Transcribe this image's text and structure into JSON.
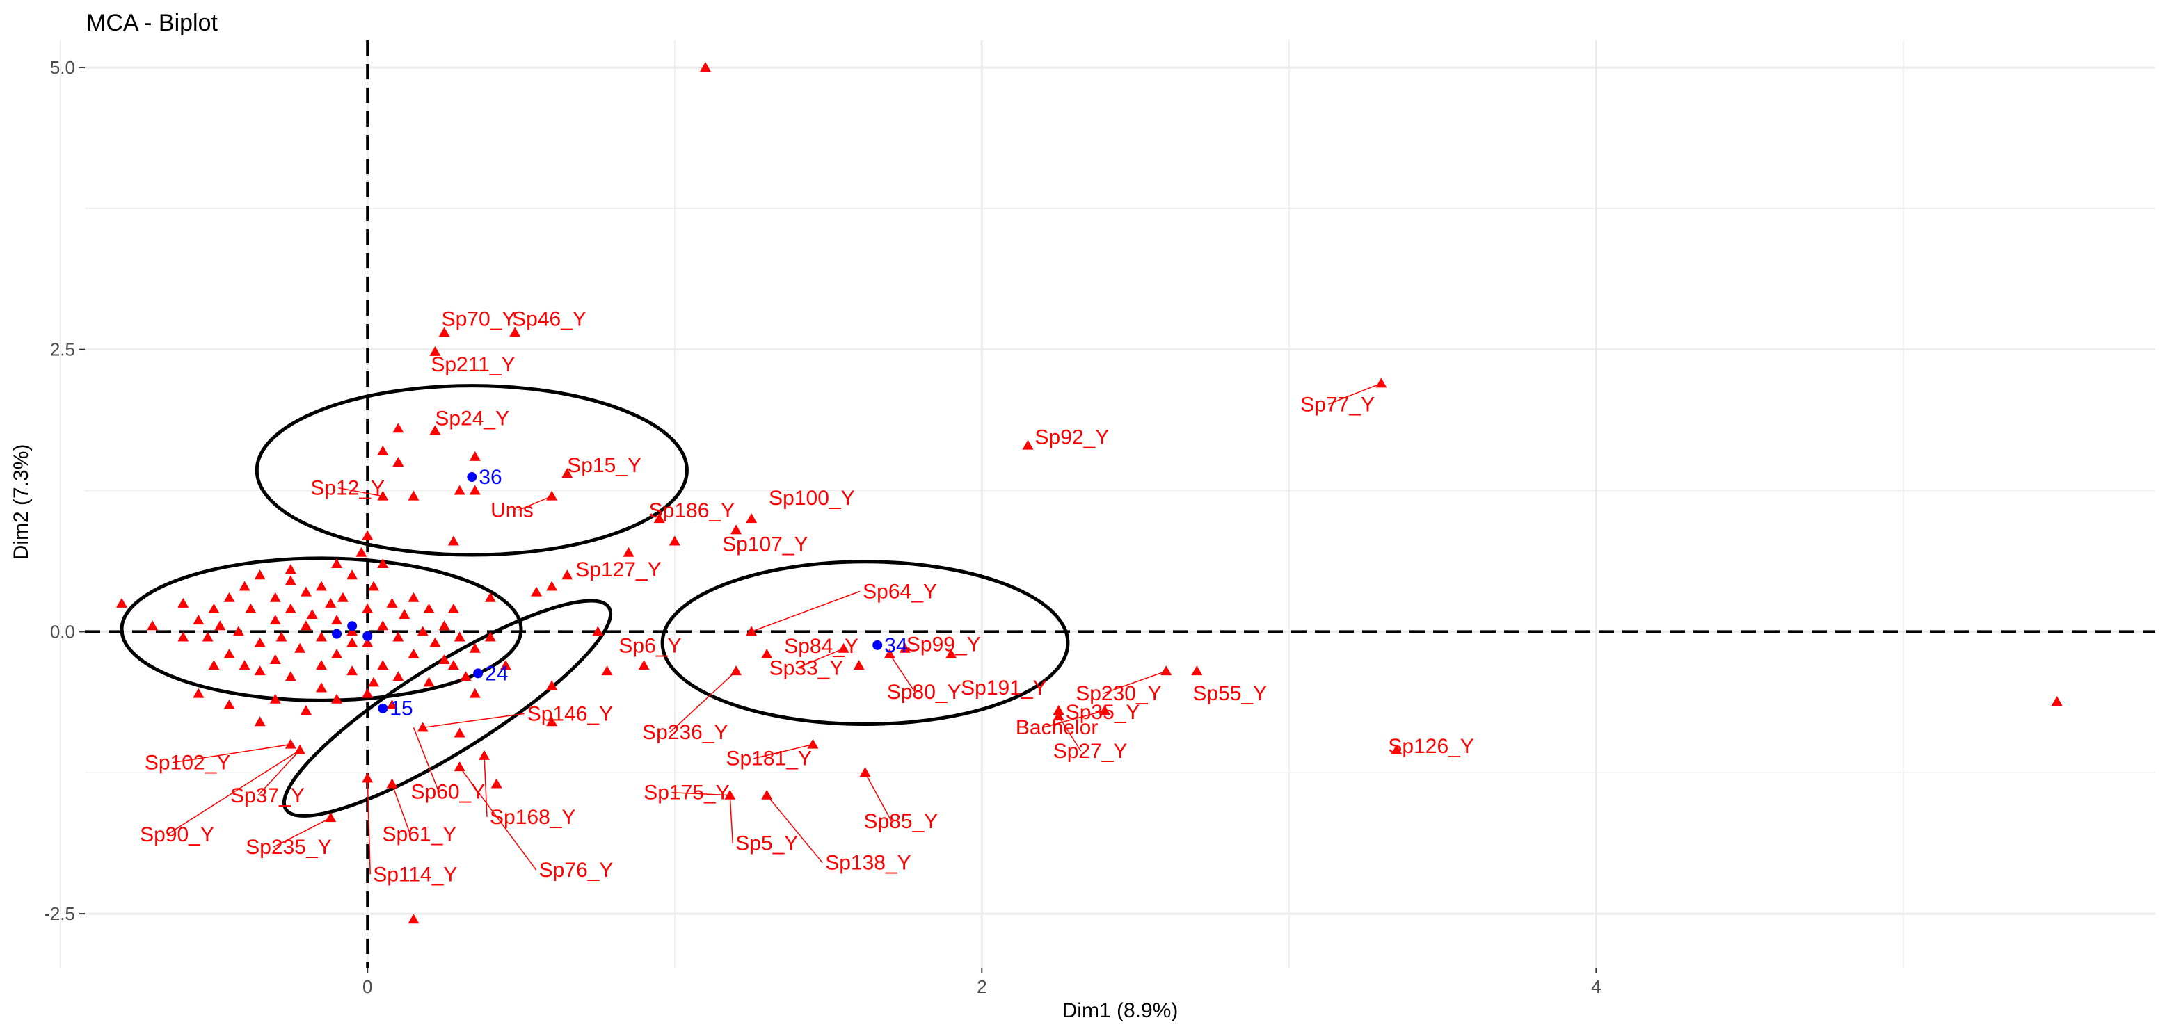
{
  "chart_data": {
    "type": "scatter",
    "title": "MCA - Biplot",
    "xlabel": "Dim1 (8.9%)",
    "ylabel": "Dim2 (7.3%)",
    "xlim": [
      -0.92,
      5.82
    ],
    "ylim": [
      -2.98,
      5.24
    ],
    "x_ticks": [
      0,
      2,
      4
    ],
    "y_ticks": [
      -2.5,
      0.0,
      2.5,
      5.0
    ],
    "x_tick_labels": [
      "0",
      "2",
      "4"
    ],
    "y_tick_labels": [
      "-2.5",
      "0.0",
      "2.5",
      "5.0"
    ],
    "grid": true,
    "reference_lines": {
      "x": 0,
      "y": 0,
      "style": "dashed"
    },
    "colors": {
      "variables": "#ff0000",
      "individuals": "#0000ff",
      "ellipse": "#000000",
      "grid": "#ebebeb"
    },
    "variable_points": [
      [
        1.1,
        5.0
      ],
      [
        3.3,
        2.2
      ],
      [
        5.5,
        -0.62
      ],
      [
        0.25,
        2.65
      ],
      [
        0.48,
        2.65
      ],
      [
        0.22,
        2.48
      ],
      [
        2.15,
        1.65
      ],
      [
        0.35,
        1.55
      ],
      [
        0.65,
        1.4
      ],
      [
        0.6,
        1.2
      ],
      [
        0.1,
        1.8
      ],
      [
        0.22,
        1.78
      ],
      [
        0.05,
        1.6
      ],
      [
        0.35,
        1.25
      ],
      [
        0.3,
        1.25
      ],
      [
        0.1,
        1.5
      ],
      [
        0.15,
        1.2
      ],
      [
        0.05,
        1.2
      ],
      [
        0.28,
        0.8
      ],
      [
        0.85,
        0.7
      ],
      [
        1.0,
        0.8
      ],
      [
        0.95,
        1.0
      ],
      [
        1.25,
        1.0
      ],
      [
        1.2,
        0.9
      ],
      [
        0.65,
        0.5
      ],
      [
        0.6,
        0.4
      ],
      [
        0.55,
        0.35
      ],
      [
        0.4,
        0.3
      ],
      [
        0.75,
        0.0
      ],
      [
        0.78,
        -0.35
      ],
      [
        0.9,
        -0.3
      ],
      [
        1.2,
        -0.35
      ],
      [
        1.3,
        -0.2
      ],
      [
        1.25,
        0.0
      ],
      [
        1.55,
        -0.15
      ],
      [
        1.6,
        -0.3
      ],
      [
        1.7,
        -0.2
      ],
      [
        1.75,
        -0.15
      ],
      [
        1.9,
        -0.2
      ],
      [
        2.4,
        -0.7
      ],
      [
        2.25,
        -0.7
      ],
      [
        2.25,
        -0.75
      ],
      [
        2.6,
        -0.35
      ],
      [
        2.7,
        -0.35
      ],
      [
        3.35,
        -1.05
      ],
      [
        1.45,
        -1.0
      ],
      [
        1.62,
        -1.25
      ],
      [
        1.18,
        -1.45
      ],
      [
        1.3,
        -1.45
      ],
      [
        0.6,
        -0.8
      ],
      [
        0.6,
        -0.48
      ],
      [
        0.35,
        -0.55
      ],
      [
        0.18,
        -0.85
      ],
      [
        0.3,
        -0.9
      ],
      [
        0.38,
        -1.1
      ],
      [
        0.42,
        -1.35
      ],
      [
        0.3,
        -1.2
      ],
      [
        0.15,
        -2.55
      ],
      [
        -0.25,
        -1.0
      ],
      [
        -0.22,
        -1.05
      ],
      [
        -0.12,
        -1.65
      ],
      [
        0.08,
        -1.35
      ],
      [
        0.0,
        -1.3
      ],
      [
        -0.05,
        -0.1
      ],
      [
        -0.6,
        0.25
      ],
      [
        -0.5,
        0.2
      ],
      [
        -0.45,
        0.3
      ],
      [
        -0.55,
        0.1
      ],
      [
        -0.48,
        0.05
      ],
      [
        -0.52,
        -0.05
      ],
      [
        -0.4,
        0.4
      ],
      [
        -0.38,
        0.2
      ],
      [
        -0.42,
        0.0
      ],
      [
        -0.35,
        -0.1
      ],
      [
        -0.3,
        0.3
      ],
      [
        -0.3,
        0.1
      ],
      [
        -0.28,
        -0.05
      ],
      [
        -0.25,
        0.45
      ],
      [
        -0.25,
        0.2
      ],
      [
        -0.22,
        -0.15
      ],
      [
        -0.2,
        0.35
      ],
      [
        -0.2,
        0.05
      ],
      [
        -0.18,
        0.15
      ],
      [
        -0.15,
        0.4
      ],
      [
        -0.15,
        -0.05
      ],
      [
        -0.12,
        0.25
      ],
      [
        -0.1,
        0.1
      ],
      [
        -0.1,
        -0.2
      ],
      [
        -0.08,
        0.3
      ],
      [
        -0.05,
        0.0
      ],
      [
        -0.05,
        0.5
      ],
      [
        0.0,
        0.2
      ],
      [
        0.0,
        -0.1
      ],
      [
        0.02,
        0.4
      ],
      [
        0.05,
        0.05
      ],
      [
        0.08,
        0.25
      ],
      [
        0.1,
        -0.05
      ],
      [
        0.12,
        0.15
      ],
      [
        0.15,
        0.3
      ],
      [
        0.18,
        0.0
      ],
      [
        0.2,
        0.2
      ],
      [
        0.22,
        -0.1
      ],
      [
        0.25,
        0.05
      ],
      [
        0.28,
        0.2
      ],
      [
        0.3,
        -0.05
      ],
      [
        -0.35,
        0.5
      ],
      [
        -0.45,
        -0.2
      ],
      [
        -0.4,
        -0.3
      ],
      [
        -0.35,
        -0.35
      ],
      [
        -0.3,
        -0.25
      ],
      [
        -0.25,
        -0.4
      ],
      [
        -0.15,
        -0.3
      ],
      [
        -0.05,
        -0.35
      ],
      [
        0.05,
        -0.3
      ],
      [
        0.15,
        -0.2
      ],
      [
        0.25,
        -0.25
      ],
      [
        0.35,
        -0.15
      ],
      [
        0.4,
        -0.05
      ],
      [
        0.45,
        -0.3
      ],
      [
        -0.5,
        -0.3
      ],
      [
        -0.6,
        -0.05
      ],
      [
        -0.7,
        0.05
      ],
      [
        -0.8,
        0.25
      ],
      [
        0.0,
        0.85
      ],
      [
        -0.02,
        0.7
      ],
      [
        -0.1,
        0.6
      ],
      [
        0.05,
        0.6
      ],
      [
        -0.55,
        -0.55
      ],
      [
        -0.45,
        -0.65
      ],
      [
        -0.3,
        -0.6
      ],
      [
        -0.2,
        -0.7
      ],
      [
        -0.1,
        -0.6
      ],
      [
        0.0,
        -0.55
      ],
      [
        0.08,
        -0.65
      ],
      [
        -0.35,
        -0.8
      ],
      [
        0.32,
        -0.4
      ],
      [
        0.28,
        -0.3
      ],
      [
        0.2,
        -0.45
      ],
      [
        0.1,
        -0.4
      ],
      [
        0.02,
        -0.45
      ],
      [
        -0.15,
        -0.5
      ],
      [
        -0.25,
        0.55
      ]
    ],
    "variable_labels": [
      {
        "text": "Sp70_Y",
        "x": 0.25,
        "y": 2.65
      },
      {
        "text": "Sp46_Y",
        "x": 0.48,
        "y": 2.65
      },
      {
        "text": "Sp211_Y",
        "x": 0.22,
        "y": 2.48
      },
      {
        "text": "Sp77_Y",
        "x": 3.3,
        "y": 2.2
      },
      {
        "text": "Sp24_Y",
        "x": 0.22,
        "y": 1.78
      },
      {
        "text": "Sp92_Y",
        "x": 2.15,
        "y": 1.65
      },
      {
        "text": "Sp15_Y",
        "x": 0.65,
        "y": 1.4
      },
      {
        "text": "Sp12_Y",
        "x": 0.05,
        "y": 1.2
      },
      {
        "text": "Ums",
        "x": 0.6,
        "y": 1.2
      },
      {
        "text": "Sp186_Y",
        "x": 0.95,
        "y": 1.0
      },
      {
        "text": "Sp100_Y",
        "x": 1.25,
        "y": 1.0
      },
      {
        "text": "Sp107_Y",
        "x": 1.2,
        "y": 0.9
      },
      {
        "text": "Sp127_Y",
        "x": 0.65,
        "y": 0.5
      },
      {
        "text": "Sp64_Y",
        "x": 1.25,
        "y": 0.0
      },
      {
        "text": "Sp84_Y",
        "x": 1.3,
        "y": -0.2
      },
      {
        "text": "Sp99_Y",
        "x": 1.75,
        "y": -0.15
      },
      {
        "text": "Sp6_Y",
        "x": 0.75,
        "y": 0.0
      },
      {
        "text": "Sp33_Y",
        "x": 1.55,
        "y": -0.15
      },
      {
        "text": "Sp80_Y",
        "x": 1.7,
        "y": -0.2
      },
      {
        "text": "Sp191_Y",
        "x": 1.9,
        "y": -0.2
      },
      {
        "text": "Sp230_Y",
        "x": 2.6,
        "y": -0.35
      },
      {
        "text": "Sp55_Y",
        "x": 2.7,
        "y": -0.35
      },
      {
        "text": "Sp236_Y",
        "x": 1.2,
        "y": -0.35
      },
      {
        "text": "Sp35_Y",
        "x": 2.25,
        "y": -0.7
      },
      {
        "text": "Bachelor",
        "x": 2.4,
        "y": -0.7
      },
      {
        "text": "Sp27_Y",
        "x": 2.25,
        "y": -0.75
      },
      {
        "text": "Sp126_Y",
        "x": 3.35,
        "y": -1.05
      },
      {
        "text": "Sp181_Y",
        "x": 1.45,
        "y": -1.0
      },
      {
        "text": "Sp146_Y",
        "x": 0.18,
        "y": -0.85
      },
      {
        "text": "Sp60_Y",
        "x": 0.15,
        "y": -0.85
      },
      {
        "text": "Sp175_Y",
        "x": 1.18,
        "y": -1.45
      },
      {
        "text": "Sp85_Y",
        "x": 1.62,
        "y": -1.25
      },
      {
        "text": "Sp5_Y",
        "x": 1.18,
        "y": -1.45
      },
      {
        "text": "Sp138_Y",
        "x": 1.3,
        "y": -1.45
      },
      {
        "text": "Sp102_Y",
        "x": -0.25,
        "y": -1.0
      },
      {
        "text": "Sp37_Y",
        "x": -0.22,
        "y": -1.05
      },
      {
        "text": "Sp90_Y",
        "x": -0.22,
        "y": -1.05
      },
      {
        "text": "Sp235_Y",
        "x": -0.12,
        "y": -1.65
      },
      {
        "text": "Sp61_Y",
        "x": 0.08,
        "y": -1.35
      },
      {
        "text": "Sp114_Y",
        "x": 0.0,
        "y": -1.3
      },
      {
        "text": "Sp168_Y",
        "x": 0.38,
        "y": -1.1
      },
      {
        "text": "Sp76_Y",
        "x": 0.3,
        "y": -1.2
      }
    ],
    "individuals": [
      {
        "label": "36",
        "x": 0.34,
        "y": 1.37
      },
      {
        "label": "34",
        "x": 1.66,
        "y": -0.12
      },
      {
        "label": "24",
        "x": 0.36,
        "y": -0.37
      },
      {
        "label": "15",
        "x": 0.05,
        "y": -0.68
      },
      {
        "label": "",
        "x": -0.1,
        "y": -0.02
      },
      {
        "label": "",
        "x": -0.05,
        "y": 0.05
      },
      {
        "label": "",
        "x": 0.0,
        "y": -0.04
      }
    ],
    "ellipses": [
      {
        "cx": 0.34,
        "cy": 1.43,
        "rx": 0.7,
        "ry": 0.75,
        "rotate": 0
      },
      {
        "cx": -0.15,
        "cy": 0.02,
        "rx": 0.65,
        "ry": 0.63,
        "rotate": 0
      },
      {
        "cx": 0.26,
        "cy": -0.68,
        "rx": 0.62,
        "ry": 0.39,
        "rotate": -32
      },
      {
        "cx": 1.62,
        "cy": -0.1,
        "rx": 0.66,
        "ry": 0.72,
        "rotate": 0
      }
    ]
  }
}
